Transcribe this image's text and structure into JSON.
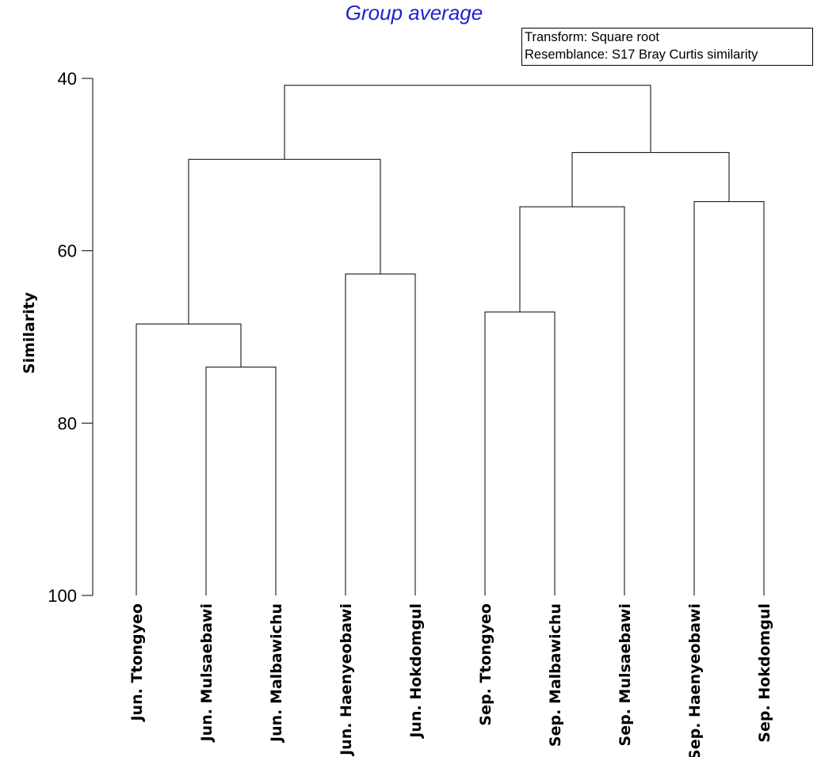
{
  "chart_data": {
    "type": "dendrogram",
    "title": "Group average",
    "ylabel": "Similarity",
    "xlabel": "",
    "ylim": [
      40,
      100
    ],
    "y_axis_inverted": true,
    "yticks": [
      40,
      60,
      80,
      100
    ],
    "grid": false,
    "legend_placement": "top-right",
    "annotations": [
      "Transform: Square root",
      "Resemblance: S17 Bray Curtis similarity"
    ],
    "leaves": [
      "Jun. Ttongyeo",
      "Jun. Mulsaebawi",
      "Jun. Malbawichu",
      "Jun. Haenyeobawi",
      "Jun. Hokdomgul",
      "Sep. Ttongyeo",
      "Sep. Malbawichu",
      "Sep. Mulsaebawi",
      "Sep. Haenyeobawi",
      "Sep. Hokdomgul"
    ],
    "merges": [
      {
        "id": "m1",
        "children": [
          "Jun. Mulsaebawi",
          "Jun. Malbawichu"
        ],
        "similarity": 73.5
      },
      {
        "id": "m2",
        "children": [
          "Jun. Ttongyeo",
          "m1"
        ],
        "similarity": 68.5
      },
      {
        "id": "m3",
        "children": [
          "Jun. Haenyeobawi",
          "Jun. Hokdomgul"
        ],
        "similarity": 62.7
      },
      {
        "id": "m4",
        "children": [
          "m2",
          "m3"
        ],
        "similarity": 49.4
      },
      {
        "id": "m5",
        "children": [
          "Sep. Ttongyeo",
          "Sep. Malbawichu"
        ],
        "similarity": 67.1
      },
      {
        "id": "m6",
        "children": [
          "m5",
          "Sep. Mulsaebawi"
        ],
        "similarity": 54.9
      },
      {
        "id": "m7",
        "children": [
          "Sep. Haenyeobawi",
          "Sep. Hokdomgul"
        ],
        "similarity": 54.3
      },
      {
        "id": "m8",
        "children": [
          "m6",
          "m7"
        ],
        "similarity": 48.6
      },
      {
        "id": "m9",
        "children": [
          "m4",
          "m8"
        ],
        "similarity": 40.8
      }
    ],
    "colors": {
      "title": "#1f1fd2",
      "lines": "#000000",
      "text": "#000000"
    }
  }
}
